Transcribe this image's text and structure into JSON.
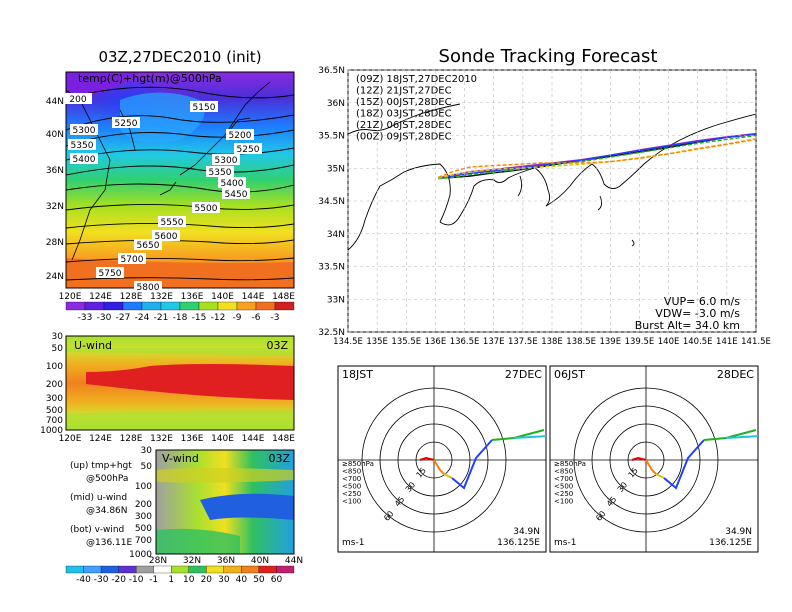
{
  "left_top": {
    "title": "03Z,27DEC2010  (init)",
    "label": "temp(C)+hgt(m)@500hPa",
    "lat_ticks": [
      "44N",
      "40N",
      "36N",
      "32N",
      "28N",
      "24N"
    ],
    "lon_ticks": [
      "120E",
      "124E",
      "128E",
      "132E",
      "136E",
      "140E",
      "144E",
      "148E"
    ],
    "contour_labels": [
      "5150",
      "5200",
      "5250",
      "5250",
      "5300",
      "5300",
      "5350",
      "5350",
      "5400",
      "5400",
      "5450",
      "5500",
      "5550",
      "5600",
      "5650",
      "5700",
      "5750",
      "5800",
      "200"
    ],
    "colorbar_ticks": [
      "-33",
      "-30",
      "-27",
      "-24",
      "-21",
      "-18",
      "-15",
      "-12",
      "-9",
      "-6",
      "-3"
    ]
  },
  "left_mid": {
    "label": "U-wind",
    "time": "03Z",
    "y_ticks": [
      "30",
      "50",
      "100",
      "200",
      "300",
      "500",
      "700",
      "1000"
    ],
    "x_ticks": [
      "120E",
      "124E",
      "128E",
      "132E",
      "136E",
      "140E",
      "144E",
      "148E"
    ]
  },
  "left_bot": {
    "label": "V-wind",
    "time": "03Z",
    "y_ticks": [
      "30",
      "50",
      "100",
      "200",
      "300",
      "500",
      "700",
      "1000"
    ],
    "x_ticks": [
      "28N",
      "32N",
      "36N",
      "40N",
      "44N"
    ],
    "colorbar_ticks": [
      "-40",
      "-30",
      "-20",
      "-10",
      "-1",
      "1",
      "10",
      "20",
      "30",
      "40",
      "50",
      "60"
    ]
  },
  "legend_notes": [
    "(up) tmp+hgt",
    "@500hPa",
    "(mid) u-wind",
    "@34.86N",
    "(bot) v-wind",
    "@136.11E"
  ],
  "right": {
    "title": "Sonde Tracking Forecast",
    "runs": [
      {
        "label": "(09Z)  18JST,27DEC2010",
        "color": "#000000"
      },
      {
        "label": "(12Z)  21JST,27DEC",
        "color": "#a020c0"
      },
      {
        "label": "(15Z)  00JST,28DEC",
        "color": "#2040ff"
      },
      {
        "label": "(18Z)  03JST,28DEC",
        "color": "#20b020"
      },
      {
        "label": "(21Z)  06JST,28DEC",
        "color": "#e0c000"
      },
      {
        "label": "(00Z)  09JST,28DEC",
        "color": "#ff8000"
      }
    ],
    "lat_ticks": [
      "36.5N",
      "36N",
      "35.5N",
      "35N",
      "34.5N",
      "34N",
      "33.5N",
      "33N",
      "32.5N"
    ],
    "lon_ticks": [
      "134.5E",
      "135E",
      "135.5E",
      "136E",
      "136.5E",
      "137E",
      "137.5E",
      "138E",
      "138.5E",
      "139E",
      "139.5E",
      "140E",
      "140.5E",
      "141E",
      "141.5E"
    ],
    "params": [
      "VUP=  6.0  m/s",
      "VDW= -3.0  m/s",
      "Burst Alt=  34.0  km"
    ]
  },
  "hodographs": [
    {
      "time": "18JST",
      "date": "27DEC",
      "lat": "34.9N",
      "lon": "136.125E",
      "unit": "ms-1"
    },
    {
      "time": "06JST",
      "date": "28DEC",
      "lat": "34.9N",
      "lon": "136.125E",
      "unit": "ms-1"
    }
  ],
  "hodo_rings": [
    "15",
    "30",
    "45",
    "60"
  ],
  "hodo_legend": [
    {
      "label": "≥850hPa",
      "color": "#e00000"
    },
    {
      "label": "<850",
      "color": "#ff8000"
    },
    {
      "label": "<700",
      "color": "#e0c000"
    },
    {
      "label": "<500",
      "color": "#20b020"
    },
    {
      "label": "<250",
      "color": "#20c0e0"
    },
    {
      "label": "<100",
      "color": "#2040ff"
    }
  ],
  "chart_data": [
    {
      "type": "heatmap",
      "title": "03Z,27DEC2010  (init)",
      "xlabel": "",
      "ylabel": "",
      "xlim": [
        "120E",
        "150E"
      ],
      "ylim": [
        "22N",
        "48N"
      ]
    },
    {
      "type": "heatmap",
      "title": "U-wind",
      "ylim": [
        1000,
        30
      ],
      "xlim": [
        "120E",
        "150E"
      ]
    },
    {
      "type": "heatmap",
      "title": "V-wind",
      "ylim": [
        1000,
        30
      ],
      "xlim": [
        "28N",
        "44N"
      ]
    },
    {
      "type": "line",
      "title": "Sonde Tracking Forecast",
      "xlim": [
        134.5,
        141.5
      ],
      "ylim": [
        32.5,
        36.5
      ],
      "series": [
        {
          "name": "(09Z)  18JST,27DEC2010",
          "x": [
            136.05,
            136.3,
            136.6,
            137.0,
            137.4,
            137.8,
            138.0,
            138.5,
            139.0,
            139.5,
            140.0,
            140.5,
            141.0,
            141.5
          ],
          "y": [
            34.85,
            34.86,
            34.88,
            34.93,
            34.97,
            35.02,
            35.05,
            35.12,
            35.18,
            35.25,
            35.32,
            35.4,
            35.47,
            35.52
          ]
        },
        {
          "name": "(12Z)  21JST,27DEC",
          "x": [
            136.05,
            136.3,
            136.6,
            137.0,
            137.4,
            137.8,
            138.0,
            138.5,
            139.0,
            139.5,
            140.0,
            140.5,
            141.0,
            141.5
          ],
          "y": [
            34.85,
            34.9,
            34.95,
            34.98,
            35.02,
            35.06,
            35.08,
            35.13,
            35.2,
            35.28,
            35.35,
            35.42,
            35.48,
            35.53
          ]
        },
        {
          "name": "(15Z)  00JST,28DEC",
          "x": [
            136.05,
            136.3,
            136.6,
            137.0,
            137.4,
            137.8,
            138.0,
            138.5,
            139.0,
            139.5,
            140.0,
            140.5,
            141.0,
            141.5
          ],
          "y": [
            34.85,
            34.88,
            34.92,
            34.96,
            35.0,
            35.04,
            35.07,
            35.12,
            35.2,
            35.27,
            35.34,
            35.41,
            35.47,
            35.52
          ]
        },
        {
          "name": "(18Z)  03JST,28DEC",
          "x": [
            136.05,
            136.3,
            136.6,
            137.0,
            137.4,
            137.8,
            138.0,
            138.5,
            139.0,
            139.5,
            140.0,
            140.5,
            141.0,
            141.5
          ],
          "y": [
            34.84,
            34.86,
            34.9,
            34.94,
            34.98,
            35.02,
            35.05,
            35.1,
            35.17,
            35.24,
            35.31,
            35.38,
            35.44,
            35.5
          ]
        },
        {
          "name": "(21Z)  06JST,28DEC",
          "x": [
            136.05,
            136.3,
            136.6,
            137.0,
            137.4,
            137.8,
            138.0,
            138.5,
            139.0,
            139.5,
            140.0,
            140.5,
            141.0,
            141.5
          ],
          "y": [
            34.85,
            34.9,
            34.95,
            34.98,
            35.0,
            35.02,
            35.03,
            35.06,
            35.1,
            35.16,
            35.22,
            35.29,
            35.36,
            35.44
          ]
        },
        {
          "name": "(00Z)  09JST,28DEC",
          "x": [
            136.05,
            136.3,
            136.6,
            137.0,
            137.4,
            137.8,
            138.0,
            138.5,
            139.0,
            139.5,
            140.0,
            140.5,
            141.0,
            141.5
          ],
          "y": [
            34.86,
            34.95,
            35.02,
            35.04,
            35.06,
            35.08,
            35.08,
            35.08,
            35.1,
            35.15,
            35.22,
            35.3,
            35.37,
            35.45
          ]
        }
      ]
    }
  ]
}
